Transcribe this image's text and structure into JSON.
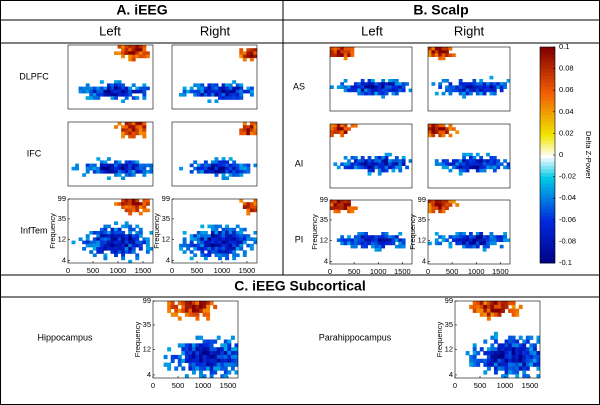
{
  "panels": [
    {
      "title": "A. iEEG",
      "columns": [
        "Left",
        "Right"
      ],
      "rows": [
        "DLPFC",
        "IFC",
        "InfTem"
      ]
    },
    {
      "title": "B. Scalp",
      "columns": [
        "Left",
        "Right"
      ],
      "rows": [
        "AS",
        "AI",
        "PI"
      ]
    },
    {
      "title": "C. iEEG Subcortical",
      "rows": [
        "Hippocampus",
        "Parahippocampus"
      ]
    }
  ],
  "axes": {
    "ylabel": "Frequency",
    "yticks": [
      99,
      35,
      12,
      4
    ],
    "ylim": [
      3.5,
      99
    ],
    "log_y": true,
    "xticks": [
      0,
      500,
      1000,
      1500
    ],
    "xlim": [
      0,
      1700
    ]
  },
  "colorbar": {
    "label": "Delta Z-Power",
    "lim": [
      -0.1,
      0.1
    ],
    "ticks": [
      0.1,
      0.08,
      0.06,
      0.04,
      0.02,
      0,
      -0.02,
      -0.04,
      -0.06,
      -0.08,
      -0.1
    ]
  }
}
